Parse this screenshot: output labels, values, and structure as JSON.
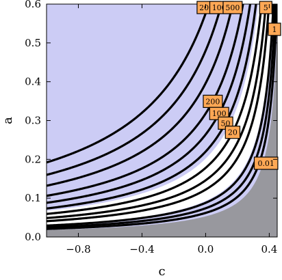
{
  "chart_data": {
    "type": "contour",
    "xlabel": "c",
    "ylabel": "a",
    "xlim": [
      -1.0,
      0.45
    ],
    "ylim": [
      0.0,
      0.6
    ],
    "x_ticks": [
      {
        "value": -0.8,
        "label": "−0.8"
      },
      {
        "value": -0.4,
        "label": "−0.4"
      },
      {
        "value": 0.0,
        "label": "0.0"
      },
      {
        "value": 0.4,
        "label": "0.4"
      }
    ],
    "y_ticks": [
      {
        "value": 0.0,
        "label": "0.0"
      },
      {
        "value": 0.1,
        "label": "0.1"
      },
      {
        "value": 0.2,
        "label": "0.2"
      },
      {
        "value": 0.3,
        "label": "0.3"
      },
      {
        "value": 0.4,
        "label": "0.4"
      },
      {
        "value": 0.5,
        "label": "0.5"
      },
      {
        "value": 0.6,
        "label": "0.6"
      }
    ],
    "contour_levels": [
      {
        "label": "2000",
        "k": 0.288
      },
      {
        "label": "1000",
        "k": 0.24
      },
      {
        "label": "500",
        "k": 0.198
      },
      {
        "label": "200",
        "k": 0.159
      },
      {
        "label": "100",
        "k": 0.132
      },
      {
        "label": "50",
        "k": 0.11
      },
      {
        "label": "20",
        "k": 0.089
      },
      {
        "label": "5",
        "k": 0.073
      },
      {
        "label": "1",
        "k": 0.061
      },
      {
        "label": "0.01",
        "k": 0.044
      }
    ],
    "unlabeled_levels": [
      0.037,
      0.031
    ],
    "region_boundaries": {
      "upper_light_k": 0.101,
      "lower_light_k": 0.0465,
      "gray_k": 0.0265
    },
    "colors": {
      "light_region": "#ccccf5",
      "gray_region": "#98989e",
      "contour_line": "#000000",
      "label_fill": "#ffa855",
      "label_border": "#000000"
    }
  }
}
